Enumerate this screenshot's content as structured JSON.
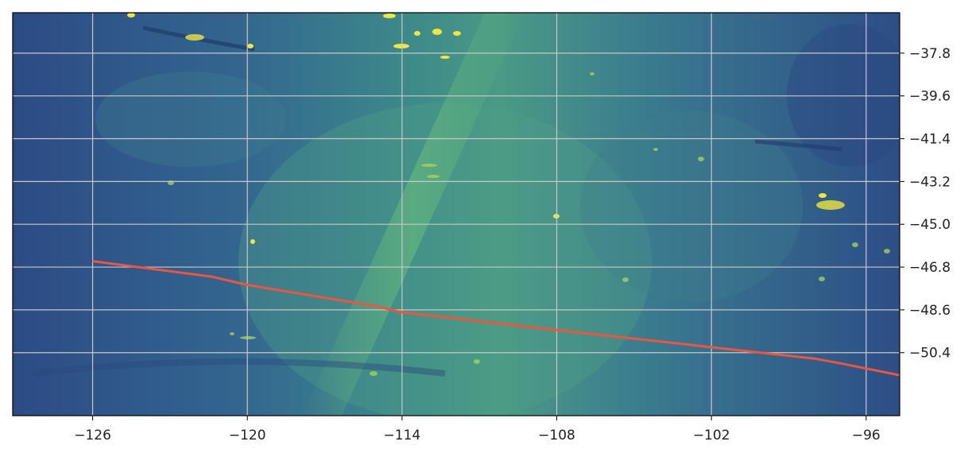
{
  "chart_data": {
    "type": "line",
    "title": "",
    "xlabel": "",
    "ylabel": "",
    "xlim": [
      -129.1,
      -94.7
    ],
    "ylim": [
      -53.05,
      -36.1
    ],
    "grid": true,
    "y_axis_side": "right",
    "background": "satellite raster (viridis colormap)",
    "colors": {
      "line": "#e8573e",
      "grid": "#c8c8c8",
      "raster_dark": "#2f4f87",
      "raster_mid": "#3a7d8a",
      "raster_light": "#6bbb7c",
      "highlight": "#f2e640"
    },
    "x_ticks": [
      -126,
      -120,
      -114,
      -108,
      -102,
      -96
    ],
    "x_tick_labels": [
      "−126",
      "−120",
      "−114",
      "−108",
      "−102",
      "−96"
    ],
    "y_ticks": [
      -37.8,
      -39.6,
      -41.4,
      -43.2,
      -45.0,
      -46.8,
      -48.6,
      -50.4
    ],
    "y_tick_labels": [
      "−37.8",
      "−39.6",
      "−41.4",
      "−43.2",
      "−45.0",
      "−46.8",
      "−48.6",
      "−50.4"
    ],
    "series": [
      {
        "x": [
          -126.0,
          -121.4,
          -120.0,
          -115.0,
          -114.0,
          -108.0,
          -103.0,
          -98.0,
          -97.0,
          -94.7
        ],
        "y": [
          -46.55,
          -47.2,
          -47.55,
          -48.45,
          -48.7,
          -49.45,
          -50.05,
          -50.65,
          -50.85,
          -51.35
        ]
      }
    ]
  }
}
